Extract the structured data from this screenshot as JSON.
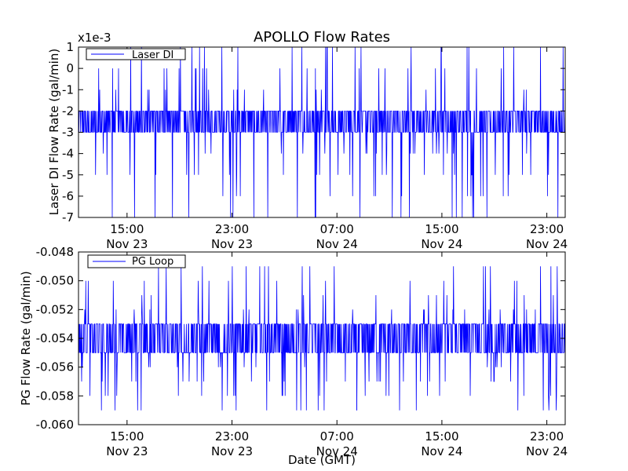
{
  "title": "APOLLO Flow Rates",
  "line_color": "#0000ff",
  "x_tick_labels": [
    {
      "time": "15:00",
      "date": "Nov 23"
    },
    {
      "time": "23:00",
      "date": "Nov 23"
    },
    {
      "time": "07:00",
      "date": "Nov 24"
    },
    {
      "time": "15:00",
      "date": "Nov 24"
    },
    {
      "time": "23:00",
      "date": "Nov 24"
    }
  ],
  "x_hours": [
    15,
    23,
    31,
    39,
    47
  ],
  "chart_data": [
    {
      "type": "line",
      "title": "APOLLO Flow Rates",
      "ylabel": "Laser DI Flow Rate (gal/min)",
      "xlabel": "",
      "multiplier_label": "x1e-3",
      "ylim": [
        -7,
        1
      ],
      "yticks": [
        1,
        0,
        -1,
        -2,
        -3,
        -4,
        -5,
        -6,
        -7
      ],
      "xlim_hours": [
        11.3,
        48.4
      ],
      "legend": "top-left",
      "series": [
        {
          "name": "Laser DI",
          "baseline": -2.5,
          "noise_levels": [
            -3,
            -2
          ],
          "spike_levels": [
            1,
            0,
            -1,
            -4,
            -5,
            -6,
            -7
          ],
          "values_range": [
            -7,
            1
          ]
        }
      ]
    },
    {
      "type": "line",
      "title": "",
      "ylabel": "PG Flow Rate (gal/min)",
      "xlabel": "Date (GMT)",
      "ylim": [
        -0.06,
        -0.048
      ],
      "yticks": [
        "-0.048",
        "-0.050",
        "-0.052",
        "-0.054",
        "-0.056",
        "-0.058",
        "-0.060"
      ],
      "xlim_hours": [
        11.3,
        48.4
      ],
      "legend": "top-left",
      "series": [
        {
          "name": "PG Loop",
          "baseline": -0.054,
          "noise_levels": [
            -0.055,
            -0.053
          ],
          "spike_levels": [
            -0.049,
            -0.05,
            -0.051,
            -0.052,
            -0.056,
            -0.057,
            -0.058,
            -0.059
          ],
          "values_range": [
            -0.059,
            -0.049
          ]
        }
      ]
    }
  ]
}
